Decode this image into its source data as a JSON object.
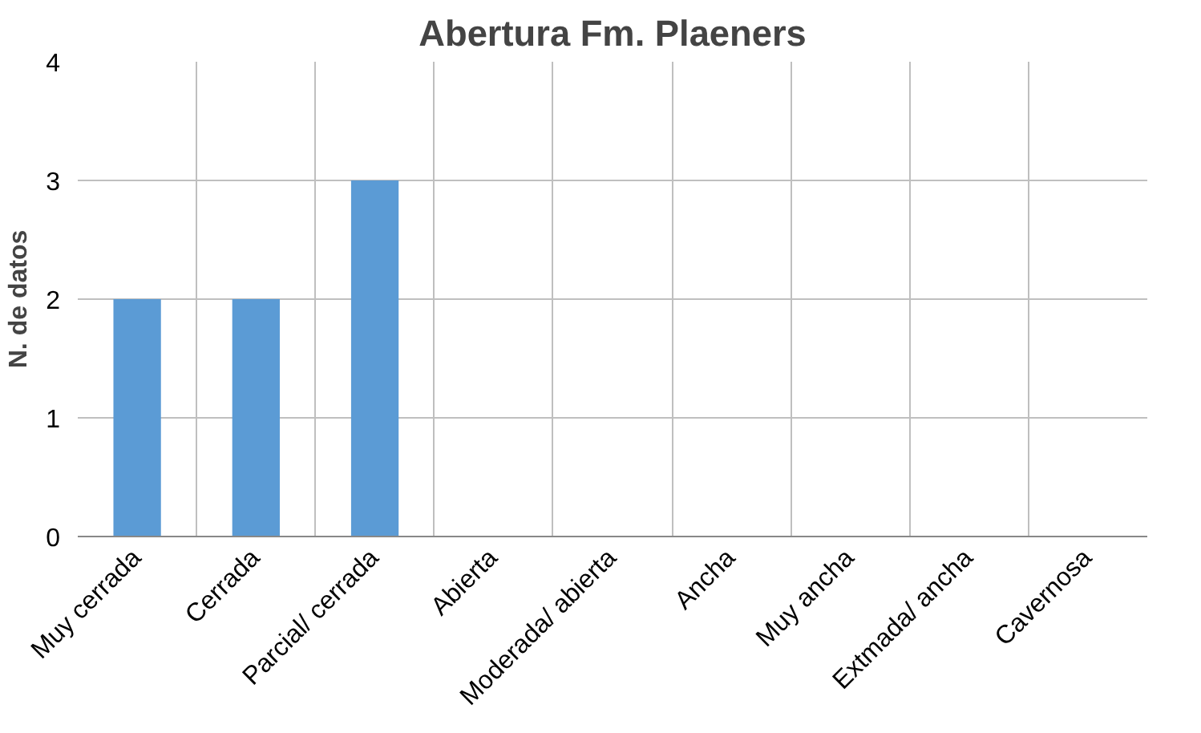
{
  "chart_data": {
    "type": "bar",
    "title": "Abertura Fm. Plaeners",
    "ylabel": "N. de datos",
    "categories": [
      "Muy cerrada",
      "Cerrada",
      "Parcial/ cerrada",
      "Abierta",
      "Moderada/ abierta",
      "Ancha",
      "Muy ancha",
      "Extmada/ ancha",
      "Cavernosa"
    ],
    "values": [
      2,
      2,
      3,
      0,
      0,
      0,
      0,
      0,
      0
    ],
    "color": "#5b9bd5",
    "ylim": [
      0,
      4
    ],
    "yticks": [
      0,
      1,
      2,
      3,
      4
    ],
    "grid": true
  }
}
